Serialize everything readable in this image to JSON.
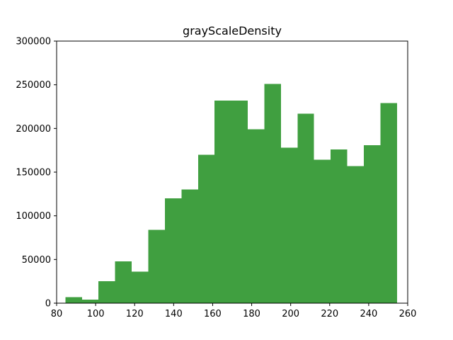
{
  "chart_data": {
    "type": "bar",
    "title": "grayScaleDensity",
    "xlabel": "",
    "ylabel": "",
    "xlim": [
      80,
      260
    ],
    "ylim": [
      0,
      300000
    ],
    "grid": false,
    "bar_color": "#409f40",
    "bins": [
      {
        "x0": 84.5,
        "x1": 93.0,
        "value": 7000
      },
      {
        "x0": 93.0,
        "x1": 101.5,
        "value": 4000
      },
      {
        "x0": 101.5,
        "x1": 110.0,
        "value": 25000
      },
      {
        "x0": 110.0,
        "x1": 118.5,
        "value": 48000
      },
      {
        "x0": 118.5,
        "x1": 127.0,
        "value": 36000
      },
      {
        "x0": 127.0,
        "x1": 135.5,
        "value": 84000
      },
      {
        "x0": 135.5,
        "x1": 144.0,
        "value": 120000
      },
      {
        "x0": 144.0,
        "x1": 152.5,
        "value": 130000
      },
      {
        "x0": 152.5,
        "x1": 161.0,
        "value": 170000
      },
      {
        "x0": 161.0,
        "x1": 169.5,
        "value": 232000
      },
      {
        "x0": 169.5,
        "x1": 178.0,
        "value": 232000
      },
      {
        "x0": 178.0,
        "x1": 186.5,
        "value": 199000
      },
      {
        "x0": 186.5,
        "x1": 195.0,
        "value": 251000
      },
      {
        "x0": 195.0,
        "x1": 203.5,
        "value": 178000
      },
      {
        "x0": 203.5,
        "x1": 212.0,
        "value": 217000
      },
      {
        "x0": 212.0,
        "x1": 220.5,
        "value": 164000
      },
      {
        "x0": 220.5,
        "x1": 229.0,
        "value": 176000
      },
      {
        "x0": 229.0,
        "x1": 237.5,
        "value": 157000
      },
      {
        "x0": 237.5,
        "x1": 246.0,
        "value": 181000
      },
      {
        "x0": 246.0,
        "x1": 254.5,
        "value": 229000
      }
    ],
    "xticks": [
      80,
      100,
      120,
      140,
      160,
      180,
      200,
      220,
      240,
      260
    ],
    "yticks": [
      0,
      50000,
      100000,
      150000,
      200000,
      250000,
      300000
    ]
  }
}
